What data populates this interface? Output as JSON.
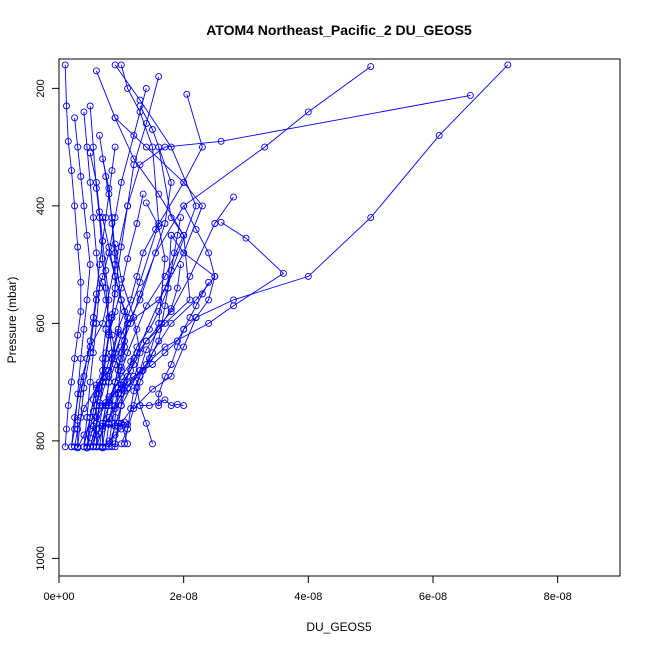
{
  "chart_data": {
    "type": "line",
    "title": "ATOM4 Northeast_Pacific_2 DU_GEOS5",
    "xlabel": "DU_GEOS5",
    "ylabel": "Pressure (mbar)",
    "xlim": [
      0,
      9e-08
    ],
    "ylim": [
      1030,
      150
    ],
    "y_reversed": true,
    "x_ticks": [
      0,
      2e-08,
      4e-08,
      6e-08,
      8e-08
    ],
    "x_tick_labels": [
      "0e+00",
      "2e-08",
      "4e-08",
      "6e-08",
      "8e-08"
    ],
    "y_ticks": [
      200,
      400,
      600,
      800,
      1000
    ],
    "y_tick_labels": [
      "200",
      "400",
      "600",
      "800",
      "1000"
    ],
    "grid": false,
    "legend": "none",
    "colors": {
      "series": "#0000ff",
      "axis": "#000000",
      "background": "#ffffff"
    },
    "series": [
      {
        "x": [
          1.1e-08,
          1e-08,
          1.2e-08,
          1.3e-08,
          1.5e-08,
          1.8e-08,
          2.2e-08,
          2.5e-08,
          2e-08,
          1.8e-08
        ],
        "y": [
          805,
          770,
          740,
          700,
          650,
          600,
          560,
          520,
          480,
          450
        ]
      },
      {
        "x": [
          5e-09,
          6e-09,
          8e-09,
          1e-08,
          1.3e-08,
          1.7e-08,
          2.4e-08,
          2.8e-08,
          3.6e-08,
          3e-08,
          2.6e-08
        ],
        "y": [
          810,
          790,
          760,
          720,
          680,
          640,
          600,
          570,
          515,
          455,
          428
        ]
      },
      {
        "x": [
          3e-09,
          4e-09,
          6e-09,
          8e-09,
          1e-08,
          1.2e-08,
          1.4e-08,
          1.8e-08,
          2.1e-08,
          2.5e-08,
          2.8e-08
        ],
        "y": [
          812,
          790,
          760,
          725,
          690,
          660,
          630,
          580,
          520,
          430,
          385
        ]
      },
      {
        "x": [
          6e-09,
          7e-09,
          9e-09,
          1.1e-08,
          1.4e-08,
          1.6e-08,
          1.7e-08,
          1.6e-08,
          1.4e-08
        ],
        "y": [
          810,
          780,
          745,
          710,
          670,
          600,
          490,
          435,
          395
        ]
      },
      {
        "x": [
          8e-09,
          9e-09,
          1e-08,
          1.2e-08,
          1.3e-08,
          1.2e-08,
          1e-08,
          9e-09
        ],
        "y": [
          810,
          775,
          740,
          700,
          650,
          590,
          525,
          465
        ]
      },
      {
        "x": [
          1e-08,
          1.1e-08,
          1.2e-08,
          1.5e-08,
          1.8e-08,
          2e-08,
          2.2e-08,
          2.8e-08,
          4e-08,
          5e-08,
          6.1e-08,
          7.2e-08
        ],
        "y": [
          805,
          780,
          745,
          712,
          690,
          640,
          590,
          560,
          520,
          420,
          280,
          160
        ]
      },
      {
        "x": [
          2e-09,
          2.5e-09,
          3.5e-09,
          5e-09,
          7e-09,
          9e-09,
          1.1e-08,
          1.3e-08,
          1.7e-08,
          2.6e-08,
          6.6e-08
        ],
        "y": [
          810,
          760,
          700,
          640,
          600,
          500,
          400,
          330,
          300,
          290,
          212
        ]
      },
      {
        "x": [
          4e-09,
          5e-09,
          6e-09,
          8e-09,
          1e-08,
          1.3e-08,
          1.6e-08,
          1.5e-08,
          1.3e-08,
          1.1e-08,
          1e-08
        ],
        "y": [
          810,
          760,
          705,
          680,
          620,
          530,
          430,
          300,
          240,
          200,
          160
        ]
      },
      {
        "x": [
          7e-09,
          7.5e-09,
          8e-09,
          9e-09,
          1e-08,
          1.1e-08,
          1.6e-08,
          2e-08,
          2.3e-08,
          2e-08,
          1.4e-08,
          9e-09
        ],
        "y": [
          810,
          770,
          735,
          700,
          650,
          600,
          560,
          480,
          400,
          360,
          300,
          250
        ]
      },
      {
        "x": [
          8.5e-09,
          9e-09,
          9.5e-09,
          1.05e-08,
          1.15e-08,
          1.25e-08,
          1.7e-08,
          2.2e-08,
          1.8e-08,
          1.3e-08,
          9e-09
        ],
        "y": [
          810,
          760,
          720,
          700,
          680,
          650,
          540,
          400,
          300,
          220,
          160
        ]
      },
      {
        "x": [
          5e-09,
          6e-09,
          7.5e-09,
          1e-08,
          1.2e-08,
          1.4e-08,
          1.7e-08,
          2.1e-08,
          2e-08,
          1.6e-08,
          1.2e-08,
          9e-09,
          6e-09
        ],
        "y": [
          810,
          770,
          735,
          705,
          670,
          630,
          600,
          560,
          450,
          380,
          320,
          250,
          170
        ]
      },
      {
        "x": [
          2.5e-09,
          3e-09,
          4e-09,
          6e-09,
          8e-09,
          1e-08,
          1.3e-08,
          1.7e-08,
          1.8e-08,
          1.5e-08,
          1.3e-08
        ],
        "y": [
          810,
          780,
          745,
          710,
          690,
          620,
          560,
          430,
          360,
          270,
          230
        ]
      },
      {
        "x": [
          4.5e-09,
          5e-09,
          5.5e-09,
          6.5e-09,
          7.5e-09,
          8.5e-09,
          9.5e-09,
          1.05e-08,
          1.15e-08,
          1.25e-08,
          1.35e-08,
          1.55e-08,
          2e-08,
          2.3e-08,
          2.05e-08
        ],
        "y": [
          812,
          760,
          730,
          700,
          680,
          650,
          610,
          580,
          560,
          520,
          480,
          440,
          360,
          300,
          210
        ]
      },
      {
        "x": [
          6.5e-09,
          7e-09,
          7.5e-09,
          8e-09,
          9e-09,
          1e-08,
          1.15e-08,
          1.3e-08,
          1.55e-08,
          2e-08,
          3.3e-08,
          4e-08,
          5e-08
        ],
        "y": [
          810,
          775,
          740,
          700,
          670,
          640,
          600,
          550,
          480,
          400,
          300,
          240,
          163
        ]
      },
      {
        "x": [
          3e-09,
          3.5e-09,
          4e-09,
          5e-09,
          5.5e-09,
          6e-09,
          7e-09,
          8e-09,
          9e-09,
          1e-08,
          1.2e-08,
          1.4e-08
        ],
        "y": [
          810,
          760,
          710,
          650,
          600,
          560,
          520,
          480,
          420,
          360,
          280,
          200
        ]
      },
      {
        "x": [
          5.5e-09,
          6e-09,
          6.5e-09,
          7.5e-09,
          8.5e-09,
          9.5e-09,
          1e-08,
          9e-09,
          8.5e-09,
          7.5e-09,
          6.5e-09
        ],
        "y": [
          810,
          770,
          735,
          700,
          660,
          615,
          560,
          480,
          420,
          350,
          280
        ]
      },
      {
        "x": [
          7e-09,
          7e-09,
          7.5e-09,
          8e-09,
          8.5e-09,
          8e-09,
          7.5e-09,
          7e-09,
          6.5e-09,
          6e-09,
          5.5e-09,
          5e-09
        ],
        "y": [
          810,
          770,
          740,
          700,
          650,
          600,
          540,
          490,
          420,
          370,
          300,
          230
        ]
      },
      {
        "x": [
          4e-09,
          4.5e-09,
          5e-09,
          5.5e-09,
          6e-09,
          6.5e-09,
          6e-09,
          5.5e-09,
          5e-09,
          4.5e-09,
          4e-09
        ],
        "y": [
          810,
          760,
          700,
          650,
          600,
          540,
          480,
          420,
          360,
          300,
          240
        ]
      },
      {
        "x": [
          2e-09,
          2.5e-09,
          3e-09,
          3.5e-09,
          4e-09,
          4.5e-09,
          5e-09,
          4.5e-09,
          4e-09,
          3.5e-09,
          3e-09,
          2.5e-09
        ],
        "y": [
          810,
          780,
          720,
          660,
          610,
          560,
          500,
          450,
          400,
          350,
          300,
          250
        ]
      },
      {
        "x": [
          6e-09,
          6e-09,
          6.5e-09,
          7e-09,
          7e-09,
          7.5e-09,
          8e-09,
          7.5e-09,
          7e-09,
          6.5e-09,
          6e-09,
          5e-09
        ],
        "y": [
          810,
          780,
          740,
          700,
          660,
          610,
          560,
          510,
          460,
          410,
          360,
          310
        ]
      },
      {
        "x": [
          4.5e-09,
          5e-09,
          5.5e-09,
          6e-09,
          6.5e-09,
          7e-09,
          7.5e-09,
          8e-09,
          8.5e-09,
          9e-09,
          1e-08,
          1.1e-08,
          1.2e-08,
          1.4e-08,
          1.6e-08
        ],
        "y": [
          810,
          795,
          775,
          740,
          720,
          700,
          660,
          620,
          590,
          540,
          470,
          400,
          330,
          260,
          180
        ]
      },
      {
        "x": [
          7.5e-09,
          8e-09,
          8.5e-09,
          9e-09,
          1e-08,
          1.1e-08,
          1.25e-08,
          1.4e-08,
          1.7e-08,
          2e-08,
          1.8e-08,
          1.6e-08
        ],
        "y": [
          810,
          770,
          740,
          700,
          680,
          650,
          610,
          570,
          520,
          450,
          420,
          300
        ]
      },
      {
        "x": [
          9e-09,
          9.5e-09,
          1e-08,
          1.05e-08,
          1.1e-08,
          1.15e-08,
          1.25e-08,
          1.45e-08,
          1.6e-08,
          1.75e-08,
          1.8e-08
        ],
        "y": [
          810,
          775,
          740,
          715,
          690,
          665,
          640,
          610,
          580,
          540,
          450
        ]
      },
      {
        "x": [
          3e-09,
          3e-09,
          3.5e-09,
          4e-09,
          4.5e-09,
          5e-09,
          5.5e-09,
          6e-09,
          6.5e-09,
          7e-09,
          7.5e-09,
          8e-09,
          8.5e-09,
          9e-09
        ],
        "y": [
          810,
          765,
          720,
          690,
          660,
          630,
          590,
          550,
          500,
          460,
          420,
          380,
          340,
          300
        ]
      },
      {
        "x": [
          5.5e-09,
          6e-09,
          6e-09,
          6.5e-09,
          7e-09,
          7.5e-09,
          8e-09,
          8.5e-09,
          9e-09,
          9e-09,
          8.5e-09,
          8e-09,
          7e-09
        ],
        "y": [
          810,
          780,
          740,
          710,
          680,
          650,
          615,
          585,
          550,
          500,
          430,
          370,
          320
        ]
      },
      {
        "x": [
          1e-09,
          1.2e-09,
          1.5e-09,
          2e-09,
          2.5e-09,
          3e-09,
          3.5e-09,
          3.5e-09,
          3e-09,
          2.5e-09,
          2e-09,
          1.5e-09,
          1.2e-09,
          1e-09
        ],
        "y": [
          810,
          780,
          740,
          700,
          660,
          620,
          580,
          530,
          470,
          400,
          340,
          290,
          230,
          160
        ]
      },
      {
        "x": [
          4.5e-09,
          5e-09,
          5.5e-09,
          6e-09,
          7e-09,
          7.5e-09,
          8e-09,
          9e-09,
          1e-08,
          1.1e-08,
          1.25e-08,
          1.35e-08
        ],
        "y": [
          812,
          780,
          750,
          720,
          690,
          660,
          620,
          580,
          540,
          490,
          430,
          380
        ]
      },
      {
        "x": [
          8e-09,
          8.5e-09,
          9e-09,
          9.5e-09,
          1e-08,
          1.05e-08,
          1.1e-08,
          1e-08,
          9e-09,
          8e-09
        ],
        "y": [
          805,
          770,
          740,
          710,
          675,
          640,
          600,
          560,
          520,
          480
        ]
      },
      {
        "x": [
          1.05e-08,
          1.1e-08,
          1.15e-08,
          1.2e-08,
          1.3e-08,
          1.45e-08,
          1.6e-08,
          1.65e-08,
          1.7e-08,
          1.75e-08,
          1.8e-08,
          1.85e-08,
          1.9e-08,
          1.95e-08
        ],
        "y": [
          805,
          780,
          745,
          715,
          690,
          660,
          630,
          600,
          570,
          540,
          510,
          480,
          450,
          420
        ]
      },
      {
        "x": [
          7e-09,
          7e-09,
          8e-09,
          9e-09,
          1e-08,
          1.05e-08,
          1.1e-08,
          1e-08,
          9e-09,
          8e-09,
          7e-09
        ],
        "y": [
          812,
          770,
          740,
          700,
          660,
          630,
          590,
          560,
          520,
          470,
          420
        ]
      },
      {
        "x": [
          1.5e-08,
          1.4e-08,
          1.3e-08,
          1.25e-08,
          1.3e-08,
          1.4e-08,
          1.6e-08,
          1.8e-08,
          1.9e-08,
          1.95e-08
        ],
        "y": [
          805,
          770,
          740,
          710,
          680,
          645,
          610,
          575,
          540,
          500
        ]
      },
      {
        "x": [
          1.6e-08,
          1.6e-08,
          1.7e-08,
          1.8e-08,
          1.9e-08,
          2e-08,
          2.2e-08,
          2.4e-08,
          2.5e-08,
          2.4e-08,
          2.2e-08,
          2e-08
        ],
        "y": [
          740,
          720,
          690,
          670,
          640,
          610,
          590,
          560,
          520,
          480,
          440,
          400
        ]
      },
      {
        "x": [
          9e-09,
          9.5e-09,
          1e-08,
          1e-08,
          9.5e-09,
          9e-09,
          8.5e-09,
          8e-09,
          7.5e-09,
          7e-09
        ],
        "y": [
          805,
          770,
          740,
          710,
          680,
          650,
          620,
          590,
          560,
          530
        ]
      },
      {
        "x": [
          6e-09,
          7e-09,
          8e-09,
          9e-09,
          1e-08,
          1.1e-08,
          1.2e-08,
          1.35e-08,
          1.5e-08,
          1.7e-08,
          1.9e-08,
          2e-08,
          2.1e-08,
          2.2e-08,
          2.3e-08,
          2.4e-08
        ],
        "y": [
          810,
          740,
          730,
          720,
          710,
          700,
          690,
          680,
          670,
          650,
          630,
          610,
          590,
          570,
          550,
          530
        ]
      },
      {
        "x": [
          1.3e-08,
          1.45e-08,
          1.6e-08,
          1.7e-08,
          1.8e-08,
          1.9e-08,
          2e-08
        ],
        "y": [
          740,
          740,
          735,
          730,
          740,
          738,
          740
        ]
      },
      {
        "x": [
          7e-09,
          8e-09,
          9e-09,
          1e-08,
          1.05e-08,
          1.1e-08,
          1e-08,
          9e-09,
          8e-09,
          7e-09
        ],
        "y": [
          775,
          772,
          775,
          770,
          768,
          772,
          780,
          790,
          800,
          810
        ]
      }
    ]
  }
}
